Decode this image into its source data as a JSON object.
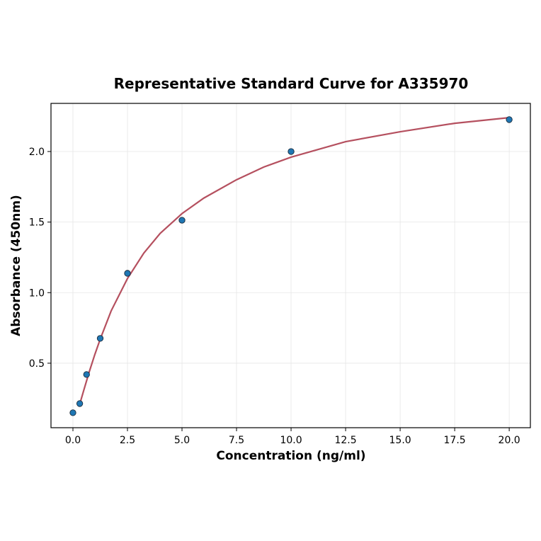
{
  "chart_data": {
    "type": "scatter",
    "title": "Representative Standard Curve for A335970",
    "x_label": "Concentration (ng/ml)",
    "y_label": "Absorbance (450nm)",
    "xlim": [
      -1.006,
      20.97
    ],
    "ylim": [
      0.043,
      2.341
    ],
    "xticks": [
      {
        "value": 0,
        "label": "0.0"
      },
      {
        "value": 2.5,
        "label": "2.5"
      },
      {
        "value": 5,
        "label": "5.0"
      },
      {
        "value": 7.5,
        "label": "7.5"
      },
      {
        "value": 10,
        "label": "10.0"
      },
      {
        "value": 12.5,
        "label": "12.5"
      },
      {
        "value": 15,
        "label": "15.0"
      },
      {
        "value": 17.5,
        "label": "17.5"
      },
      {
        "value": 20,
        "label": "20.0"
      }
    ],
    "yticks": [
      0.5,
      {
        "value": 1,
        "label": "1.0"
      },
      1.5,
      {
        "value": 2,
        "label": "2.0"
      }
    ],
    "grid": true,
    "points": {
      "color": "#1f77b4",
      "x": [
        0,
        0.3125,
        0.625,
        1.25,
        2.5,
        5,
        10,
        20
      ],
      "y": [
        0.149,
        0.214,
        0.42,
        0.676,
        1.137,
        1.513,
        2.0,
        2.226
      ]
    },
    "curve": {
      "color": "#b5505f",
      "x": [
        0.3125,
        0.5,
        0.75,
        1.0,
        1.25,
        1.75,
        2.5,
        3.25,
        4,
        5,
        6,
        7.5,
        8.75,
        10,
        12.5,
        15,
        17.5,
        20
      ],
      "y": [
        0.21,
        0.31,
        0.44,
        0.56,
        0.67,
        0.87,
        1.1,
        1.28,
        1.42,
        1.56,
        1.67,
        1.8,
        1.89,
        1.96,
        2.07,
        2.14,
        2.2,
        2.24
      ]
    }
  }
}
